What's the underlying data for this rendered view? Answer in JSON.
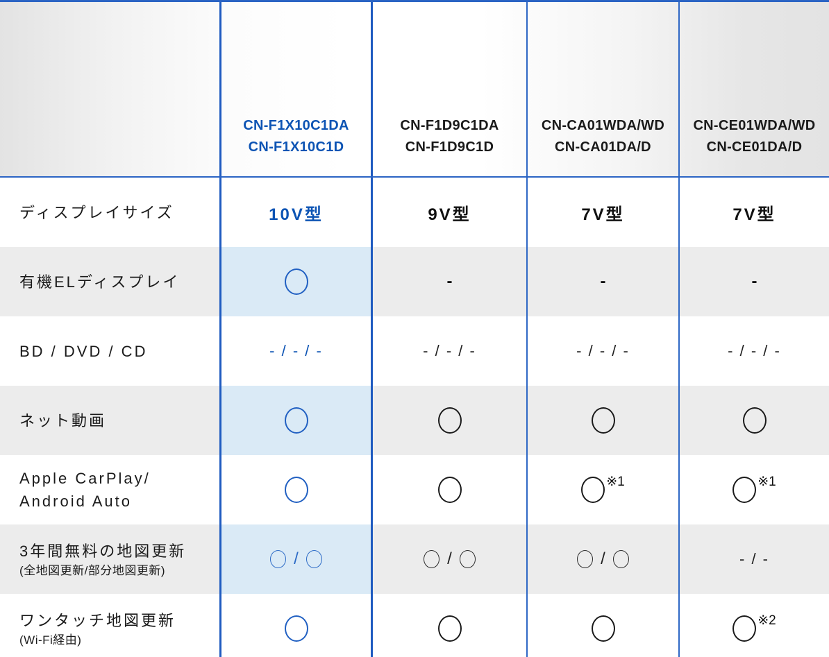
{
  "colors": {
    "accent_blue_border": "#1f5bc0",
    "featured_text_blue": "#0d54b4",
    "featured_cell_bg": "#daeaf6",
    "stripe_gray": "#ececec",
    "header_gray": "#e3e3e3",
    "text_black": "#1a1a1a"
  },
  "header": {
    "models": [
      {
        "line1": "CN-F1X10C1DA",
        "line2": "CN-F1X10C1D",
        "featured": true
      },
      {
        "line1": "CN-F1D9C1DA",
        "line2": "CN-F1D9C1D",
        "featured": false
      },
      {
        "line1": "CN-CA01WDA/WD",
        "line2": "CN-CA01DA/D",
        "featured": false
      },
      {
        "line1": "CN-CE01WDA/WD",
        "line2": "CN-CE01DA/D",
        "featured": false
      }
    ]
  },
  "rows": [
    {
      "label": "ディスプレイサイズ",
      "cells": [
        {
          "type": "text",
          "text": "10V型"
        },
        {
          "type": "text",
          "text": "9V型"
        },
        {
          "type": "text",
          "text": "7V型"
        },
        {
          "type": "text",
          "text": "7V型"
        }
      ]
    },
    {
      "label": "有機ELディスプレイ",
      "cells": [
        {
          "type": "circle"
        },
        {
          "type": "dash",
          "text": "-"
        },
        {
          "type": "dash",
          "text": "-"
        },
        {
          "type": "dash",
          "text": "-"
        }
      ]
    },
    {
      "label": "BD / DVD / CD",
      "cells": [
        {
          "type": "text",
          "text": "- / - / -"
        },
        {
          "type": "text",
          "text": "- / - / -"
        },
        {
          "type": "text",
          "text": "- / - / -"
        },
        {
          "type": "text",
          "text": "- / - / -"
        }
      ]
    },
    {
      "label": "ネット動画",
      "cells": [
        {
          "type": "circle"
        },
        {
          "type": "circle"
        },
        {
          "type": "circle"
        },
        {
          "type": "circle"
        }
      ]
    },
    {
      "label": "Apple CarPlay/",
      "label2": "Android Auto",
      "cells": [
        {
          "type": "circle"
        },
        {
          "type": "circle"
        },
        {
          "type": "circle",
          "note": "※1"
        },
        {
          "type": "circle",
          "note": "※1"
        }
      ]
    },
    {
      "label": "3年間無料の地図更新",
      "sublabel": "(全地図更新/部分地図更新)",
      "cells": [
        {
          "type": "circle_pair",
          "separator": "/"
        },
        {
          "type": "circle_pair",
          "separator": "/"
        },
        {
          "type": "circle_pair",
          "separator": "/"
        },
        {
          "type": "text",
          "text": "- / -"
        }
      ]
    },
    {
      "label": "ワンタッチ地図更新",
      "sublabel": "(Wi-Fi経由)",
      "cells": [
        {
          "type": "circle"
        },
        {
          "type": "circle"
        },
        {
          "type": "circle"
        },
        {
          "type": "circle",
          "note": "※2"
        }
      ]
    }
  ]
}
